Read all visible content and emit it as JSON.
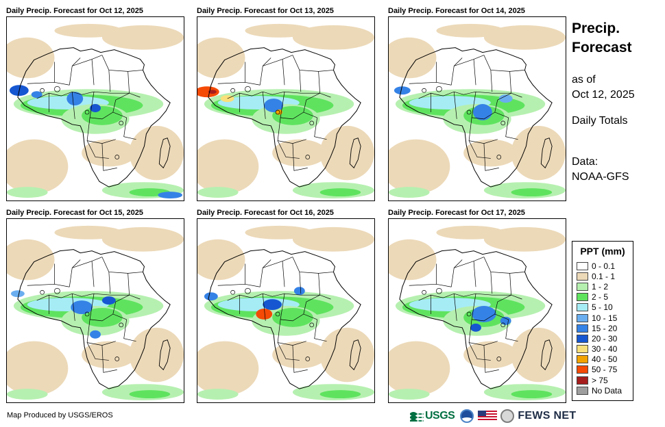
{
  "panels": [
    {
      "title": "Daily Precip. Forecast for Oct 12, 2025",
      "day_index": 0
    },
    {
      "title": "Daily Precip. Forecast for Oct 13, 2025",
      "day_index": 1
    },
    {
      "title": "Daily Precip. Forecast for Oct 14, 2025",
      "day_index": 2
    },
    {
      "title": "Daily Precip. Forecast for Oct 15, 2025",
      "day_index": 3
    },
    {
      "title": "Daily Precip. Forecast for Oct 16, 2025",
      "day_index": 4
    },
    {
      "title": "Daily Precip. Forecast for Oct 17, 2025",
      "day_index": 5
    }
  ],
  "sidebar": {
    "title_line1": "Precip.",
    "title_line2": "Forecast",
    "as_of_line1": "as of",
    "as_of_line2": "Oct 12, 2025",
    "totals": "Daily Totals",
    "data_line1": "Data:",
    "data_line2": "NOAA-GFS"
  },
  "legend": {
    "title": "PPT (mm)",
    "items": [
      {
        "label": "0 - 0.1",
        "color": "#ffffff"
      },
      {
        "label": "0.1 - 1",
        "color": "#ecd9b8"
      },
      {
        "label": "1 - 2",
        "color": "#b6f0b0"
      },
      {
        "label": "2 - 5",
        "color": "#5fe35f"
      },
      {
        "label": "5 - 10",
        "color": "#a6ecf5"
      },
      {
        "label": "10 - 15",
        "color": "#6aaef0"
      },
      {
        "label": "15 - 20",
        "color": "#3582e6"
      },
      {
        "label": "20 - 30",
        "color": "#1657d1"
      },
      {
        "label": "30 - 40",
        "color": "#fae07a"
      },
      {
        "label": "40 - 50",
        "color": "#f3a300"
      },
      {
        "label": "50 - 75",
        "color": "#f44a06"
      },
      {
        "label": "> 75",
        "color": "#a61d1d"
      },
      {
        "label": "No Data",
        "color": "#9e9e9e"
      }
    ]
  },
  "footer": {
    "credit": "Map Produced by USGS/EROS",
    "usgs_label": "USGS",
    "fews_label": "FEWS NET"
  },
  "icons": [
    "usgs-logo-icon",
    "noaa-logo-icon",
    "us-flag-icon",
    "state-department-seal-icon"
  ]
}
